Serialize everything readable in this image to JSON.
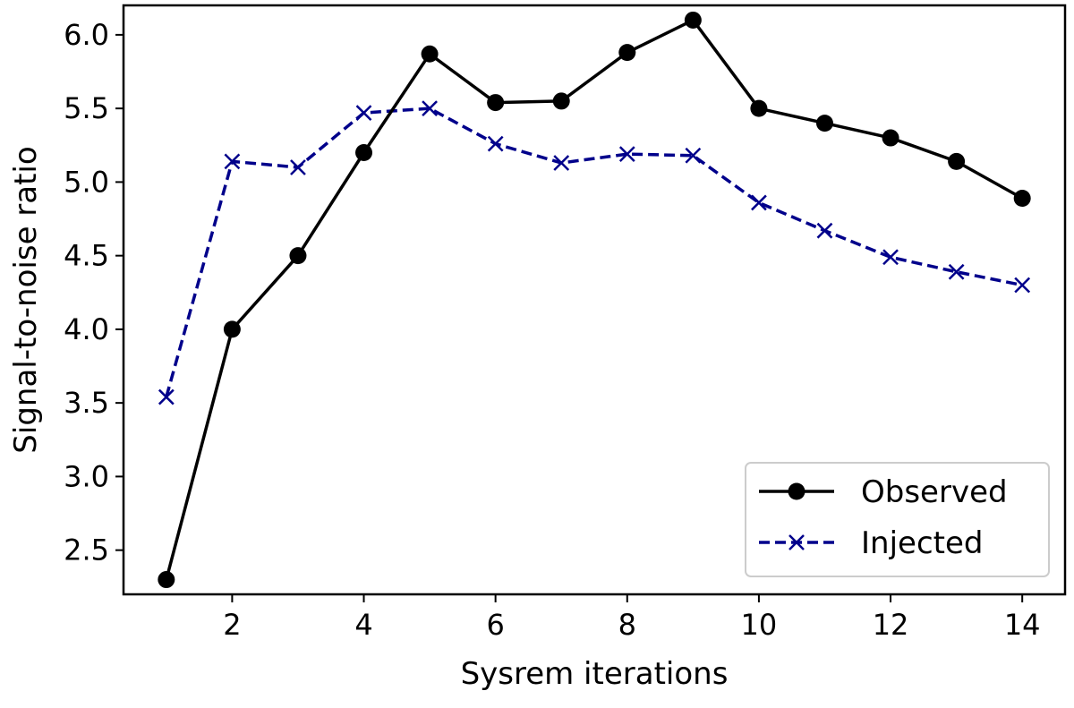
{
  "chart_data": {
    "type": "line",
    "title": "",
    "xlabel": "Sysrem iterations",
    "ylabel": "Signal-to-noise ratio",
    "xlim": [
      0.35,
      14.65
    ],
    "ylim": [
      2.2,
      6.2
    ],
    "xticks": [
      2,
      4,
      6,
      8,
      10,
      12,
      14
    ],
    "xtick_labels": [
      "2",
      "4",
      "6",
      "8",
      "10",
      "12",
      "14"
    ],
    "yticks": [
      2.5,
      3.0,
      3.5,
      4.0,
      4.5,
      5.0,
      5.5,
      6.0
    ],
    "ytick_labels": [
      "2.5",
      "3.0",
      "3.5",
      "4.0",
      "4.5",
      "5.0",
      "5.5",
      "6.0"
    ],
    "grid": false,
    "legend_position": "bottom-right",
    "x": [
      1,
      2,
      3,
      4,
      5,
      6,
      7,
      8,
      9,
      10,
      11,
      12,
      13,
      14
    ],
    "series": [
      {
        "name": "Observed",
        "color": "#000000",
        "line_style": "solid",
        "marker": "circle",
        "values": [
          2.3,
          4.0,
          4.5,
          5.2,
          5.87,
          5.54,
          5.55,
          5.88,
          6.1,
          5.5,
          5.4,
          5.3,
          5.14,
          4.89
        ]
      },
      {
        "name": "Injected",
        "color": "#00008b",
        "line_style": "dashed",
        "marker": "x",
        "values": [
          3.54,
          5.14,
          5.1,
          5.47,
          5.5,
          5.26,
          5.13,
          5.19,
          5.18,
          4.86,
          4.67,
          4.49,
          4.39,
          4.3
        ]
      }
    ]
  }
}
